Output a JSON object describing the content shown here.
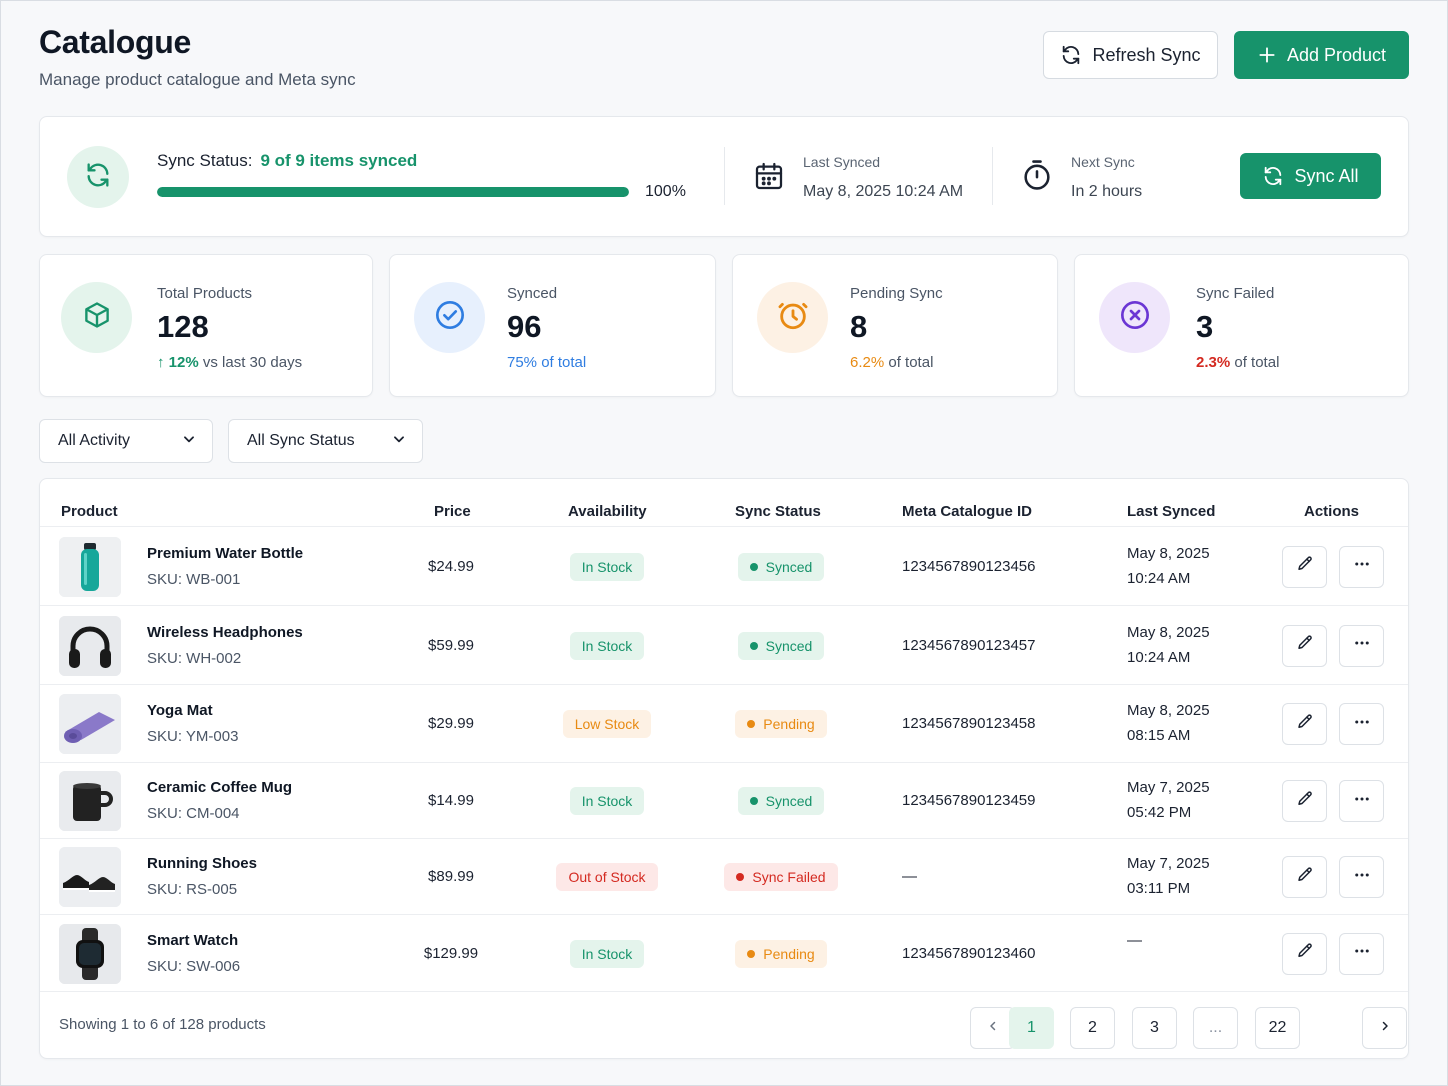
{
  "header": {
    "title": "Catalogue",
    "subtitle": "Manage product catalogue and Meta sync",
    "refresh_label": "Refresh Sync",
    "add_label": "Add Product"
  },
  "sync": {
    "label": "Sync Status:",
    "status": "9 of 9 items synced",
    "percent_text": "100%",
    "progress_fraction": 1.0,
    "last_synced_label": "Last Synced",
    "last_synced_value": "May 8, 2025 10:24 AM",
    "next_sync_label": "Next Sync",
    "next_sync_value": "In 2 hours",
    "sync_all_label": "Sync All"
  },
  "stats": [
    {
      "label": "Total Products",
      "value": "128",
      "sub_highlight": "12%",
      "sub_text": " vs last 30 days",
      "accent": "#17936b",
      "icon": "cube-icon"
    },
    {
      "label": "Synced",
      "value": "96",
      "sub_highlight": "75%",
      "sub_text": " of total",
      "accent": "#2f7de1",
      "icon": "check-circle-icon"
    },
    {
      "label": "Pending Sync",
      "value": "8",
      "sub_highlight": "6.2%",
      "sub_text": " of total",
      "accent": "#e88a12",
      "icon": "clock-icon"
    },
    {
      "label": "Sync Failed",
      "value": "3",
      "sub_highlight": "2.3%",
      "sub_text": " of total",
      "accent": "#d42a21",
      "icon": "x-circle-icon"
    }
  ],
  "filters": {
    "activity": "All Activity",
    "sync_status": "All Sync Status"
  },
  "table": {
    "columns": [
      "Product",
      "Price",
      "Availability",
      "Sync Status",
      "Meta Catalogue ID",
      "Last Synced",
      "Actions"
    ],
    "rows": [
      {
        "name": "Premium Water Bottle",
        "sku": "SKU: WB-001",
        "price": "$24.99",
        "availability": "In Stock",
        "avail_kind": "green",
        "sync": "Synced",
        "sync_kind": "green",
        "meta_id": "1234567890123456",
        "date": "May 8, 2025",
        "time": "10:24 AM",
        "thumb": "bottle"
      },
      {
        "name": "Wireless Headphones",
        "sku": "SKU: WH-002",
        "price": "$59.99",
        "availability": "In Stock",
        "avail_kind": "green",
        "sync": "Synced",
        "sync_kind": "green",
        "meta_id": "1234567890123457",
        "date": "May 8, 2025",
        "time": "10:24 AM",
        "thumb": "headphones"
      },
      {
        "name": "Yoga Mat",
        "sku": "SKU: YM-003",
        "price": "$29.99",
        "availability": "Low Stock",
        "avail_kind": "amber",
        "sync": "Pending",
        "sync_kind": "amber",
        "meta_id": "1234567890123458",
        "date": "May 8, 2025",
        "time": "08:15 AM",
        "thumb": "mat"
      },
      {
        "name": "Ceramic Coffee Mug",
        "sku": "SKU: CM-004",
        "price": "$14.99",
        "availability": "In Stock",
        "avail_kind": "green",
        "sync": "Synced",
        "sync_kind": "green",
        "meta_id": "1234567890123459",
        "date": "May 7, 2025",
        "time": "05:42 PM",
        "thumb": "mug"
      },
      {
        "name": "Running Shoes",
        "sku": "SKU: RS-005",
        "price": "$89.99",
        "availability": "Out of Stock",
        "avail_kind": "red",
        "sync": "Sync Failed",
        "sync_kind": "red",
        "meta_id": "—",
        "date": "May 7, 2025",
        "time": "03:11 PM",
        "thumb": "shoes"
      },
      {
        "name": "Smart Watch",
        "sku": "SKU: SW-006",
        "price": "$129.99",
        "availability": "In Stock",
        "avail_kind": "green",
        "sync": "Pending",
        "sync_kind": "amber",
        "meta_id": "1234567890123460",
        "date": "—",
        "time": "",
        "thumb": "watch"
      }
    ]
  },
  "footer": {
    "showing": "Showing 1 to 6 of 128 products",
    "pages": [
      "1",
      "2",
      "3",
      "...",
      "22"
    ],
    "active_page": "1"
  },
  "colors": {
    "brand": "#17936b",
    "blue": "#2f7de1",
    "amber": "#e88a12",
    "red": "#d42a21",
    "purple": "#6b36d4"
  }
}
